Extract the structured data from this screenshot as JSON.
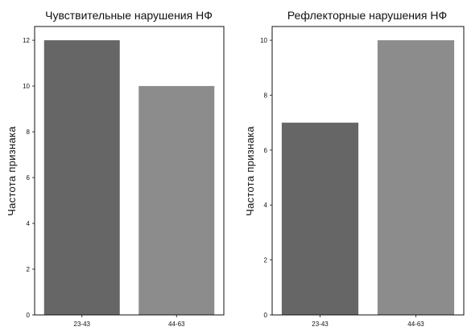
{
  "chart_data": [
    {
      "type": "bar",
      "title": "Чувствительные нарушения НФ",
      "ylabel": "Частота признака",
      "xlabel": "",
      "categories": [
        "23-43",
        "44-63"
      ],
      "values": [
        12,
        10
      ],
      "bar_colors": [
        "#666666",
        "#8c8c8c"
      ],
      "ylim": [
        0,
        12.6
      ],
      "yticks": [
        0,
        2,
        4,
        6,
        8,
        10,
        12
      ],
      "grid": false
    },
    {
      "type": "bar",
      "title": "Рефлекторные нарушения НФ",
      "ylabel": "Частота признака",
      "xlabel": "",
      "categories": [
        "23-43",
        "44-63"
      ],
      "values": [
        7,
        10
      ],
      "bar_colors": [
        "#666666",
        "#8c8c8c"
      ],
      "ylim": [
        0,
        10.5
      ],
      "yticks": [
        0,
        2,
        4,
        6,
        8,
        10
      ],
      "grid": false
    }
  ]
}
